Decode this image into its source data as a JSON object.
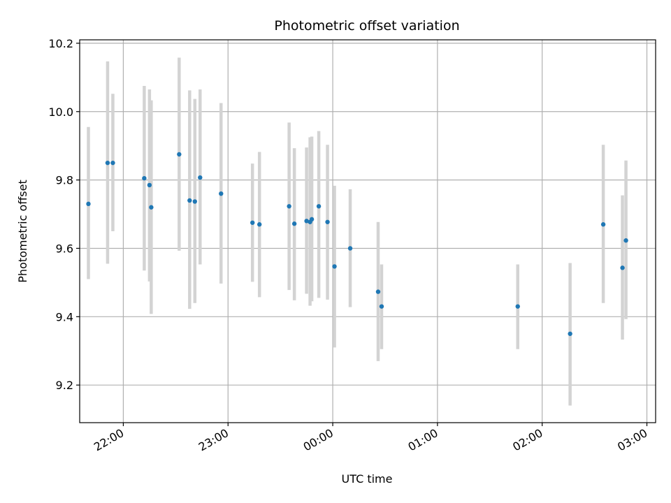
{
  "chart_data": {
    "type": "scatter",
    "title": "Photometric offset variation",
    "xlabel": "UTC time",
    "ylabel": "Photometric offset",
    "x_tick_labels": [
      "22:00",
      "23:00",
      "00:00",
      "01:00",
      "02:00",
      "03:00"
    ],
    "y_tick_labels": [
      "9.2",
      "9.4",
      "9.6",
      "9.8",
      "10.0",
      "10.2"
    ],
    "xlim": [
      "21:35",
      "03:05"
    ],
    "ylim": [
      9.09,
      10.21
    ],
    "grid": true,
    "series": [
      {
        "x": [
          "21:40",
          "21:51",
          "21:54",
          "22:12",
          "22:15",
          "22:16",
          "22:32",
          "22:38",
          "22:41",
          "22:44",
          "22:56",
          "23:14",
          "23:18",
          "23:35",
          "23:38",
          "23:45",
          "23:47",
          "23:48",
          "23:52",
          "23:57",
          "00:01",
          "00:10",
          "00:26",
          "00:28",
          "01:46",
          "02:16",
          "02:35",
          "02:46",
          "02:48"
        ],
        "y": [
          9.73,
          9.85,
          9.85,
          9.805,
          9.785,
          9.72,
          9.875,
          9.74,
          9.737,
          9.807,
          9.76,
          9.675,
          9.67,
          9.723,
          9.672,
          9.68,
          9.677,
          9.685,
          9.723,
          9.677,
          9.547,
          9.6,
          9.473,
          9.43,
          9.43,
          9.35,
          9.67,
          9.543,
          9.623
        ],
        "err_low": [
          9.51,
          9.555,
          9.65,
          9.535,
          9.503,
          9.408,
          9.593,
          9.423,
          9.44,
          9.553,
          9.497,
          9.502,
          9.457,
          9.478,
          9.448,
          9.467,
          9.432,
          9.445,
          9.455,
          9.45,
          9.31,
          9.428,
          9.27,
          9.305,
          9.305,
          9.14,
          9.44,
          9.333,
          9.393
        ],
        "err_high": [
          9.955,
          10.147,
          10.052,
          10.075,
          10.065,
          10.033,
          10.158,
          10.062,
          10.037,
          10.065,
          10.025,
          9.848,
          9.882,
          9.968,
          9.893,
          9.895,
          9.925,
          9.927,
          9.943,
          9.903,
          9.783,
          9.773,
          9.677,
          9.553,
          9.553,
          9.557,
          9.903,
          9.755,
          9.857
        ],
        "marker_color": "#1f77b4",
        "errorbar_color": "#d3d3d3"
      }
    ]
  }
}
